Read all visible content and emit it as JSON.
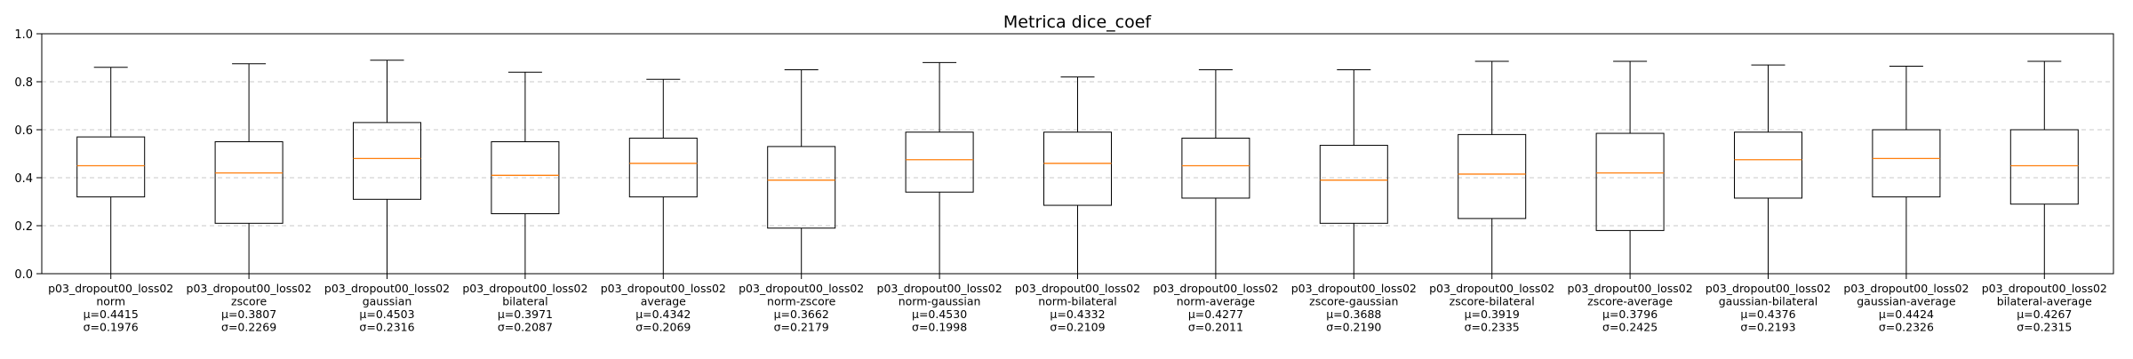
{
  "chart_data": {
    "type": "box",
    "title": "Metrica dice_coef",
    "xlabel": "",
    "ylabel": "",
    "ylim": [
      0.0,
      1.0
    ],
    "yticks": [
      "0.0",
      "0.2",
      "0.4",
      "0.6",
      "0.8",
      "1.0"
    ],
    "grid": "y-dashed",
    "colors": {
      "box": "#000000",
      "median": "#ff7f0e",
      "grid": "#c8c8c8"
    },
    "categories": [
      {
        "lines": [
          "p03_dropout00_loss02",
          "norm",
          "μ=0.4415",
          "σ=0.1976"
        ],
        "min": 0.0,
        "q1": 0.32,
        "median": 0.45,
        "q3": 0.57,
        "max": 0.86
      },
      {
        "lines": [
          "p03_dropout00_loss02",
          "zscore",
          "μ=0.3807",
          "σ=0.2269"
        ],
        "min": 0.0,
        "q1": 0.21,
        "median": 0.42,
        "q3": 0.55,
        "max": 0.875
      },
      {
        "lines": [
          "p03_dropout00_loss02",
          "gaussian",
          "μ=0.4503",
          "σ=0.2316"
        ],
        "min": 0.0,
        "q1": 0.31,
        "median": 0.48,
        "q3": 0.63,
        "max": 0.89
      },
      {
        "lines": [
          "p03_dropout00_loss02",
          "bilateral",
          "μ=0.3971",
          "σ=0.2087"
        ],
        "min": 0.0,
        "q1": 0.25,
        "median": 0.41,
        "q3": 0.55,
        "max": 0.84
      },
      {
        "lines": [
          "p03_dropout00_loss02",
          "average",
          "μ=0.4342",
          "σ=0.2069"
        ],
        "min": 0.0,
        "q1": 0.32,
        "median": 0.46,
        "q3": 0.565,
        "max": 0.81
      },
      {
        "lines": [
          "p03_dropout00_loss02",
          "norm-zscore",
          "μ=0.3662",
          "σ=0.2179"
        ],
        "min": 0.0,
        "q1": 0.19,
        "median": 0.39,
        "q3": 0.53,
        "max": 0.85
      },
      {
        "lines": [
          "p03_dropout00_loss02",
          "norm-gaussian",
          "μ=0.4530",
          "σ=0.1998"
        ],
        "min": 0.0,
        "q1": 0.34,
        "median": 0.475,
        "q3": 0.59,
        "max": 0.88
      },
      {
        "lines": [
          "p03_dropout00_loss02",
          "norm-bilateral",
          "μ=0.4332",
          "σ=0.2109"
        ],
        "min": 0.0,
        "q1": 0.285,
        "median": 0.46,
        "q3": 0.59,
        "max": 0.82
      },
      {
        "lines": [
          "p03_dropout00_loss02",
          "norm-average",
          "μ=0.4277",
          "σ=0.2011"
        ],
        "min": 0.0,
        "q1": 0.315,
        "median": 0.45,
        "q3": 0.565,
        "max": 0.85
      },
      {
        "lines": [
          "p03_dropout00_loss02",
          "zscore-gaussian",
          "μ=0.3688",
          "σ=0.2190"
        ],
        "min": 0.0,
        "q1": 0.21,
        "median": 0.39,
        "q3": 0.535,
        "max": 0.85
      },
      {
        "lines": [
          "p03_dropout00_loss02",
          "zscore-bilateral",
          "μ=0.3919",
          "σ=0.2335"
        ],
        "min": 0.0,
        "q1": 0.23,
        "median": 0.415,
        "q3": 0.58,
        "max": 0.885
      },
      {
        "lines": [
          "p03_dropout00_loss02",
          "zscore-average",
          "μ=0.3796",
          "σ=0.2425"
        ],
        "min": 0.0,
        "q1": 0.18,
        "median": 0.42,
        "q3": 0.585,
        "max": 0.885
      },
      {
        "lines": [
          "p03_dropout00_loss02",
          "gaussian-bilateral",
          "μ=0.4376",
          "σ=0.2193"
        ],
        "min": 0.0,
        "q1": 0.315,
        "median": 0.475,
        "q3": 0.59,
        "max": 0.87
      },
      {
        "lines": [
          "p03_dropout00_loss02",
          "gaussian-average",
          "μ=0.4424",
          "σ=0.2326"
        ],
        "min": 0.0,
        "q1": 0.32,
        "median": 0.48,
        "q3": 0.6,
        "max": 0.865
      },
      {
        "lines": [
          "p03_dropout00_loss02",
          "bilateral-average",
          "μ=0.4267",
          "σ=0.2315"
        ],
        "min": 0.0,
        "q1": 0.29,
        "median": 0.45,
        "q3": 0.6,
        "max": 0.885
      }
    ]
  }
}
